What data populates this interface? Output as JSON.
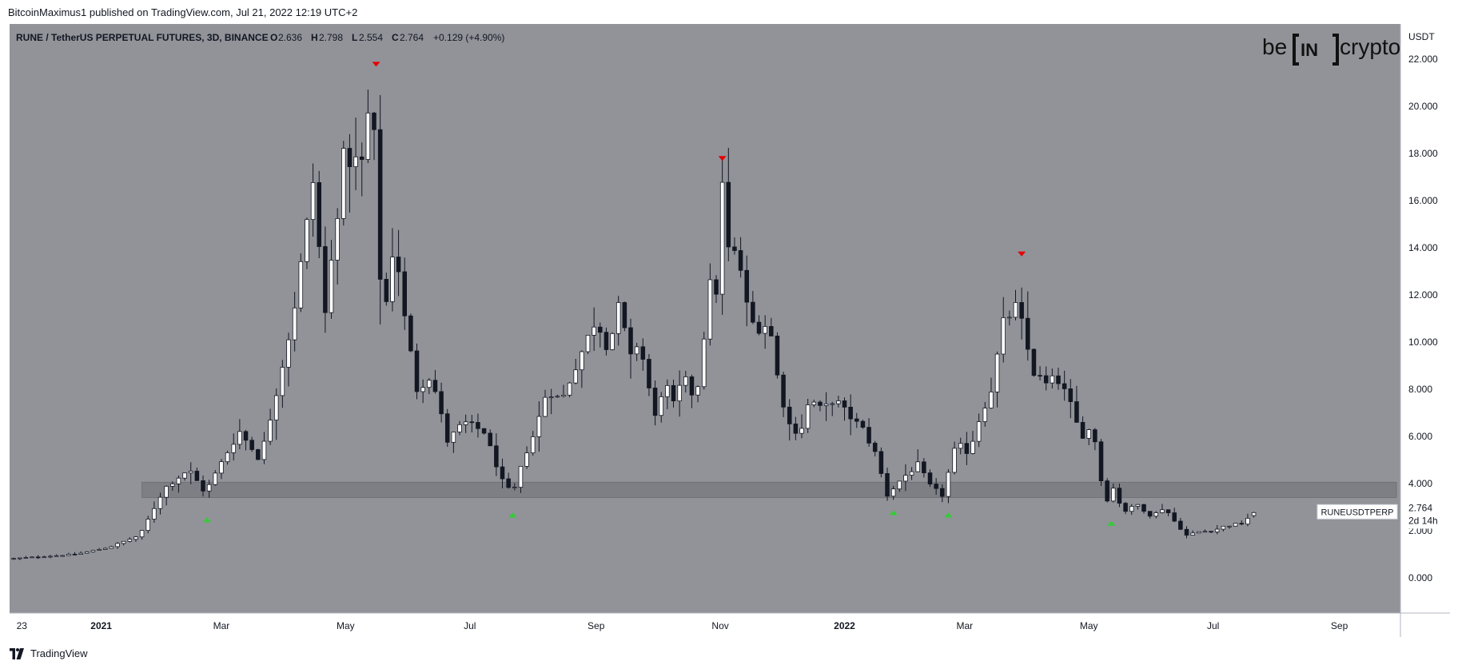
{
  "header": {
    "publisher_line": "BitcoinMaximus1 published on TradingView.com, Jul 21, 2022 12:19 UTC+2"
  },
  "legend": {
    "symbol_line": "RUNE / TetherUS PERPETUAL FUTURES, 3D, BINANCE",
    "o_label": "O",
    "o_value": "2.636",
    "h_label": "H",
    "h_value": "2.798",
    "l_label": "L",
    "l_value": "2.554",
    "c_label": "C",
    "c_value": "2.764",
    "change": "+0.129 (+4.90%)"
  },
  "logo": {
    "left": "be",
    "mid": "IN",
    "right": "crypto"
  },
  "price_scale": {
    "currency": "USDT"
  },
  "last_price": {
    "symbol_tag": "RUNEUSDTPERP",
    "price": "2.764",
    "countdown": "2d 14h"
  },
  "footer": {
    "brand": "TradingView"
  },
  "colors": {
    "background": "#919399",
    "support_band": "#7d7f85",
    "bull_candle": "#ffffff",
    "bear_candle": "#131722",
    "marker_high": "#e60000",
    "marker_low": "#33cc33"
  },
  "chart_data": {
    "type": "candlestick",
    "title": "RUNE / TetherUS PERPETUAL FUTURES, 3D, BINANCE",
    "xlabel": "",
    "ylabel": "USDT",
    "ylim": [
      -1.5,
      23.5
    ],
    "y_ticks": [
      0,
      2,
      4,
      6,
      8,
      10,
      12,
      14,
      16,
      18,
      20,
      22
    ],
    "y_tick_labels": [
      "0.000",
      "2.000",
      "4.000",
      "6.000",
      "8.000",
      "10.000",
      "12.000",
      "14.000",
      "16.000",
      "18.000",
      "20.000",
      "22.000"
    ],
    "x_start": "2020-11-17",
    "x_end": "2022-10-01",
    "candle_interval_days": 3,
    "x_ticks": [
      {
        "label": "23",
        "date": "2020-11-23",
        "bold": false
      },
      {
        "label": "2021",
        "date": "2021-01-01",
        "bold": true
      },
      {
        "label": "Mar",
        "date": "2021-03-01",
        "bold": false
      },
      {
        "label": "May",
        "date": "2021-05-01",
        "bold": false
      },
      {
        "label": "Jul",
        "date": "2021-07-01",
        "bold": false
      },
      {
        "label": "Sep",
        "date": "2021-09-01",
        "bold": false
      },
      {
        "label": "Nov",
        "date": "2021-11-01",
        "bold": false
      },
      {
        "label": "2022",
        "date": "2022-01-01",
        "bold": true
      },
      {
        "label": "Mar",
        "date": "2022-03-01",
        "bold": false
      },
      {
        "label": "May",
        "date": "2022-05-01",
        "bold": false
      },
      {
        "label": "Jul",
        "date": "2022-07-01",
        "bold": false
      },
      {
        "label": "Sep",
        "date": "2022-09-01",
        "bold": false
      }
    ],
    "support_zone": [
      3.4,
      4.05
    ],
    "closes_anchors": [
      [
        "2020-11-17",
        0.8
      ],
      [
        "2020-12-20",
        1.0
      ],
      [
        "2021-01-05",
        1.3
      ],
      [
        "2021-01-20",
        1.8
      ],
      [
        "2021-02-01",
        3.8
      ],
      [
        "2021-02-13",
        4.6
      ],
      [
        "2021-02-21",
        3.6
      ],
      [
        "2021-03-03",
        5.2
      ],
      [
        "2021-03-10",
        6.2
      ],
      [
        "2021-03-20",
        5.0
      ],
      [
        "2021-03-27",
        7.5
      ],
      [
        "2021-04-05",
        11.0
      ],
      [
        "2021-04-12",
        15.0
      ],
      [
        "2021-04-15",
        16.8
      ],
      [
        "2021-04-21",
        11.2
      ],
      [
        "2021-04-30",
        17.8
      ],
      [
        "2021-05-09",
        17.6
      ],
      [
        "2021-05-13",
        20.3
      ],
      [
        "2021-05-16",
        17.8
      ],
      [
        "2021-05-19",
        10.3
      ],
      [
        "2021-05-25",
        14.5
      ],
      [
        "2021-05-30",
        11.0
      ],
      [
        "2021-06-05",
        8.0
      ],
      [
        "2021-06-12",
        8.6
      ],
      [
        "2021-06-20",
        5.8
      ],
      [
        "2021-06-28",
        6.6
      ],
      [
        "2021-07-08",
        6.2
      ],
      [
        "2021-07-17",
        4.1
      ],
      [
        "2021-07-22",
        3.5
      ],
      [
        "2021-07-28",
        5.2
      ],
      [
        "2021-08-02",
        6.2
      ],
      [
        "2021-08-08",
        8.0
      ],
      [
        "2021-08-15",
        7.5
      ],
      [
        "2021-08-22",
        9.0
      ],
      [
        "2021-09-01",
        11.0
      ],
      [
        "2021-09-07",
        9.7
      ],
      [
        "2021-09-13",
        11.8
      ],
      [
        "2021-09-17",
        9.1
      ],
      [
        "2021-09-22",
        10.1
      ],
      [
        "2021-09-30",
        6.8
      ],
      [
        "2021-10-05",
        8.5
      ],
      [
        "2021-10-08",
        7.1
      ],
      [
        "2021-10-14",
        8.5
      ],
      [
        "2021-10-20",
        7.5
      ],
      [
        "2021-10-27",
        12.4
      ],
      [
        "2021-10-30",
        12.2
      ],
      [
        "2021-11-02",
        16.6
      ],
      [
        "2021-11-05",
        13.9
      ],
      [
        "2021-11-10",
        13.6
      ],
      [
        "2021-11-15",
        11.0
      ],
      [
        "2021-11-19",
        10.6
      ],
      [
        "2021-11-25",
        10.8
      ],
      [
        "2021-11-30",
        8.0
      ],
      [
        "2021-12-05",
        6.5
      ],
      [
        "2021-12-10",
        6.1
      ],
      [
        "2021-12-15",
        7.6
      ],
      [
        "2021-12-21",
        7.1
      ],
      [
        "2021-12-27",
        7.6
      ],
      [
        "2022-01-03",
        6.9
      ],
      [
        "2022-01-10",
        6.3
      ],
      [
        "2022-01-16",
        5.3
      ],
      [
        "2022-01-22",
        3.5
      ],
      [
        "2022-01-29",
        4.2
      ],
      [
        "2022-02-06",
        4.8
      ],
      [
        "2022-02-12",
        3.9
      ],
      [
        "2022-02-18",
        3.5
      ],
      [
        "2022-02-25",
        5.7
      ],
      [
        "2022-03-03",
        5.3
      ],
      [
        "2022-03-08",
        6.7
      ],
      [
        "2022-03-14",
        8.0
      ],
      [
        "2022-03-20",
        10.8
      ],
      [
        "2022-03-27",
        11.6
      ],
      [
        "2022-03-31",
        10.0
      ],
      [
        "2022-04-04",
        8.7
      ],
      [
        "2022-04-10",
        8.2
      ],
      [
        "2022-04-15",
        8.5
      ],
      [
        "2022-04-21",
        7.6
      ],
      [
        "2022-04-27",
        6.0
      ],
      [
        "2022-05-03",
        6.4
      ],
      [
        "2022-05-09",
        3.0
      ],
      [
        "2022-05-12",
        4.0
      ],
      [
        "2022-05-18",
        2.8
      ],
      [
        "2022-05-25",
        3.1
      ],
      [
        "2022-06-01",
        2.6
      ],
      [
        "2022-06-07",
        3.0
      ],
      [
        "2022-06-12",
        2.4
      ],
      [
        "2022-06-18",
        1.8
      ],
      [
        "2022-06-24",
        1.95
      ],
      [
        "2022-07-01",
        2.0
      ],
      [
        "2022-07-07",
        2.2
      ],
      [
        "2022-07-15",
        2.3
      ],
      [
        "2022-07-21",
        2.764
      ]
    ],
    "last_candle": {
      "date": "2022-07-21",
      "open": 2.636,
      "high": 2.798,
      "low": 2.554,
      "close": 2.764
    },
    "markers": [
      {
        "type": "swing-high",
        "date": "2021-05-16",
        "value": 21.35
      },
      {
        "type": "swing-high",
        "date": "2021-11-02",
        "value": 17.35
      },
      {
        "type": "swing-high",
        "date": "2022-03-29",
        "value": 13.3
      },
      {
        "type": "swing-low",
        "date": "2021-02-22",
        "value": 2.9
      },
      {
        "type": "swing-low",
        "date": "2021-07-22",
        "value": 3.1
      },
      {
        "type": "swing-low",
        "date": "2022-01-25",
        "value": 3.2
      },
      {
        "type": "swing-low",
        "date": "2022-02-21",
        "value": 3.1
      },
      {
        "type": "swing-low",
        "date": "2022-05-12",
        "value": 2.75
      }
    ],
    "annotations": [
      "RUNEUSDTPERP"
    ]
  }
}
